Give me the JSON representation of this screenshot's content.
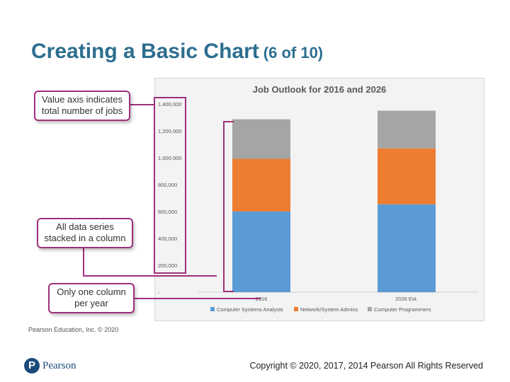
{
  "slide": {
    "title": "Creating a Basic Chart",
    "title_suffix": "(6 of 10)",
    "credit": "Pearson Education, Inc. © 2020",
    "logo_text": "Pearson",
    "logo_mark": "P",
    "copyright": "Copyright © 2020, 2017, 2014 Pearson All Rights Reserved"
  },
  "callouts": [
    {
      "line1": "Value axis indicates",
      "line2": "total number of jobs"
    },
    {
      "line1": "All data series",
      "line2": "stacked in a column"
    },
    {
      "line1": "Only one column",
      "line2": "per year"
    }
  ],
  "colors": {
    "title": "#2c6e8f",
    "callout_border": "#a0307c",
    "series": [
      "#5b9bd5",
      "#ed7d31",
      "#a5a5a5"
    ]
  },
  "chart_data": {
    "type": "bar",
    "stacked": true,
    "title": "Job Outlook for 2016 and 2026",
    "categories": [
      "2016",
      "2026 Est."
    ],
    "series": [
      {
        "name": "Computer Systems Analysts",
        "values": [
          600000,
          654000
        ]
      },
      {
        "name": "Network/System Admins",
        "values": [
          392000,
          416000
        ]
      },
      {
        "name": "Computer Programmers",
        "values": [
          294000,
          280000
        ]
      }
    ],
    "ylim": [
      0,
      1400000
    ],
    "yticks": [
      "-",
      "200,000",
      "400,000",
      "600,000",
      "800,000",
      "1,000,000",
      "1,200,000",
      "1,400,000"
    ],
    "legend": "bottom",
    "grid": false
  }
}
